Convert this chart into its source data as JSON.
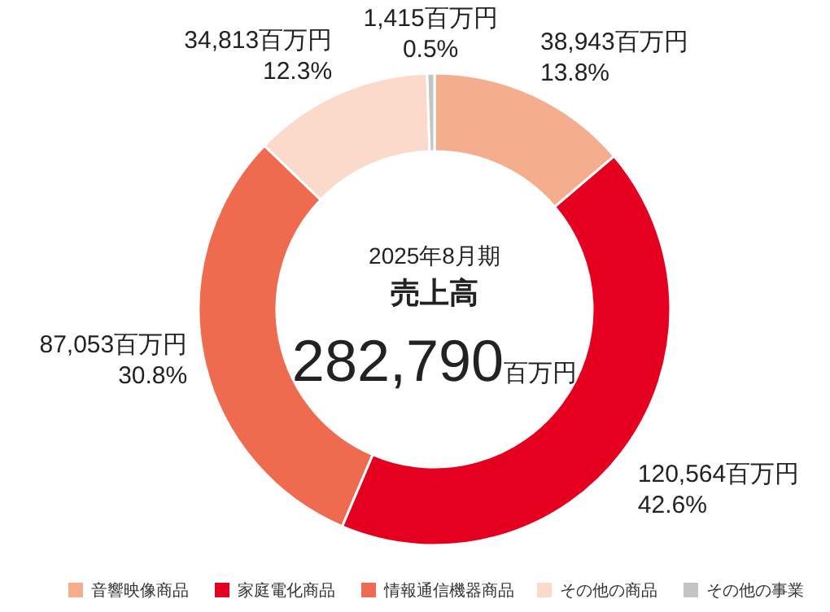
{
  "chart_data": {
    "type": "donut",
    "categories": [
      "音響映像商品",
      "家庭電化商品",
      "情報通信機器商品",
      "その他の商品",
      "その他の事業"
    ],
    "values": [
      38943,
      120564,
      87053,
      34813,
      1415
    ],
    "colors": [
      "#f4ae8e",
      "#e60020",
      "#ef6b4f",
      "#fbd9cb",
      "#c4c4c4"
    ],
    "value_labels": [
      "38,943百万円\n13.8%",
      "120,564百万円\n42.6%",
      "87,053百万円\n30.8%",
      "34,813百万円\n12.3%",
      "1,415百万円\n0.5%"
    ],
    "annotations": [
      "2025年8月期",
      "売上高",
      "282,790",
      "百万円"
    ],
    "legend": "bottom"
  }
}
